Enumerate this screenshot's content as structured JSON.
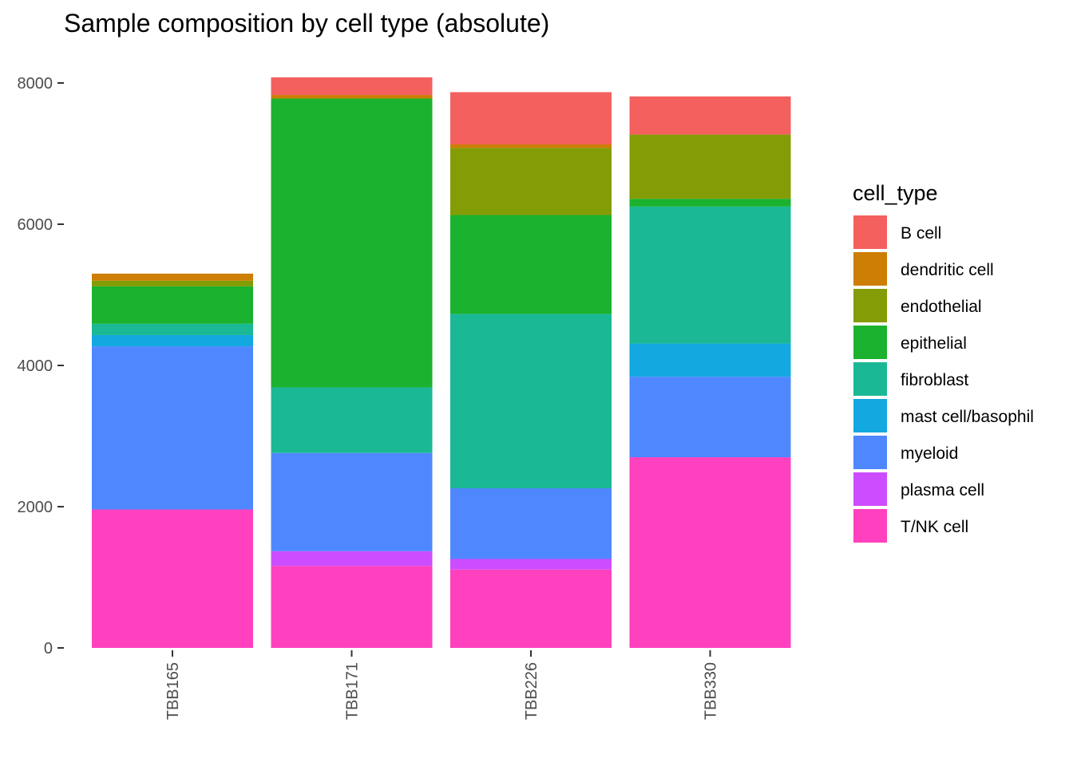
{
  "chart_data": {
    "type": "bar",
    "stacked": true,
    "title": "Sample composition by cell type (absolute)",
    "xlabel": "",
    "ylabel": "",
    "ylim": [
      0,
      8200
    ],
    "yticks": [
      0,
      2000,
      4000,
      6000,
      8000
    ],
    "grid": false,
    "legend_position": "right",
    "legend_title": "cell_type",
    "categories": [
      "TBB165",
      "TBB171",
      "TBB226",
      "TBB330"
    ],
    "series": [
      {
        "name": "T/NK cell",
        "color": "#FF40BF",
        "values": [
          1960,
          1160,
          1110,
          2700
        ]
      },
      {
        "name": "plasma cell",
        "color": "#CC4DFF",
        "values": [
          0,
          210,
          150,
          0
        ]
      },
      {
        "name": "myeloid",
        "color": "#4F87FF",
        "values": [
          2310,
          1390,
          1000,
          1140
        ]
      },
      {
        "name": "mast cell/basophil",
        "color": "#13A8E0",
        "values": [
          160,
          0,
          0,
          470
        ]
      },
      {
        "name": "fibroblast",
        "color": "#1AB894",
        "values": [
          160,
          930,
          2470,
          1940
        ]
      },
      {
        "name": "epithelial",
        "color": "#1AB22E",
        "values": [
          530,
          4090,
          1400,
          110
        ]
      },
      {
        "name": "endothelial",
        "color": "#849C05",
        "values": [
          80,
          0,
          950,
          910
        ]
      },
      {
        "name": "dendritic cell",
        "color": "#CC7E05",
        "values": [
          100,
          50,
          50,
          0
        ]
      },
      {
        "name": "B cell",
        "color": "#F4605E",
        "values": [
          0,
          250,
          740,
          540
        ]
      }
    ],
    "legend_order": [
      "B cell",
      "dendritic cell",
      "endothelial",
      "epithelial",
      "fibroblast",
      "mast cell/basophil",
      "myeloid",
      "plasma cell",
      "T/NK cell"
    ]
  }
}
